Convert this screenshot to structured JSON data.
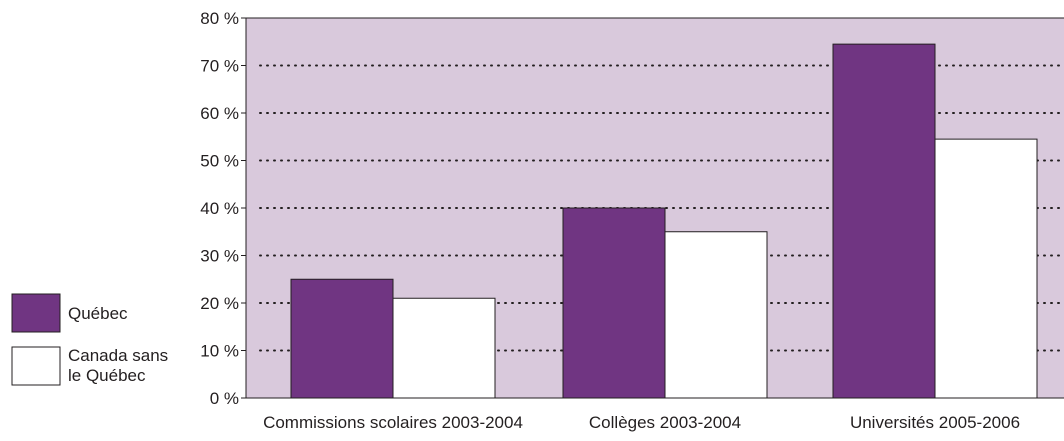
{
  "chart_data": {
    "type": "bar",
    "title": "",
    "xlabel": "",
    "ylabel": "",
    "categories": [
      "Commissions scolaires 2003-2004",
      "Collèges 2003-2004",
      "Universités 2005-2006"
    ],
    "series": [
      {
        "name": "Québec",
        "values": [
          25,
          40,
          74.5
        ],
        "color": "#703582"
      },
      {
        "name": "Canada sans le Québec",
        "values": [
          21,
          35,
          54.5
        ],
        "color": "#ffffff"
      }
    ],
    "ylim": [
      0,
      80
    ],
    "yticks": [
      0,
      10,
      20,
      30,
      40,
      50,
      60,
      70,
      80
    ],
    "ytick_labels": [
      "0 %",
      "10 %",
      "20 %",
      "30 %",
      "40 %",
      "50 %",
      "60 %",
      "70 %",
      "80 %"
    ],
    "grid": "dotted horizontal",
    "legend_position": "left",
    "legend": [
      {
        "label_lines": [
          "Québec"
        ],
        "color": "#703582"
      },
      {
        "label_lines": [
          "Canada sans",
          "le Québec"
        ],
        "color": "#ffffff"
      }
    ],
    "plot_background": "#d9c9dc"
  }
}
